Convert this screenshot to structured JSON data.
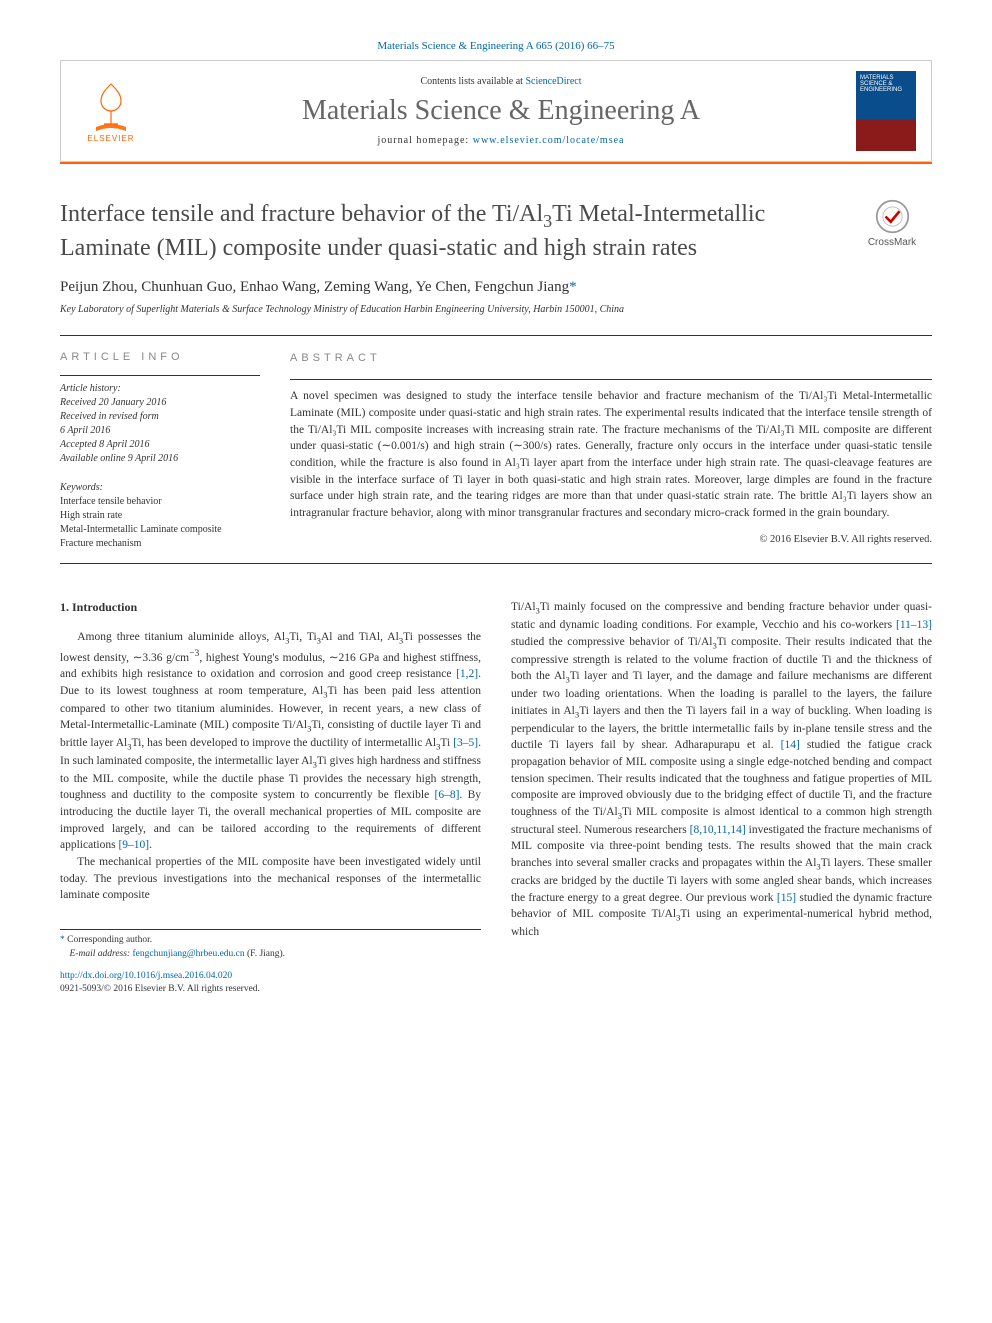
{
  "citation": "Materials Science & Engineering A 665 (2016) 66–75",
  "header": {
    "contents_prefix": "Contents lists available at ",
    "contents_link": "ScienceDirect",
    "journal_name": "Materials Science & Engineering A",
    "homepage_prefix": "journal homepage: ",
    "homepage_link": "www.elsevier.com/locate/msea",
    "publisher_logo_text": "ELSEVIER",
    "cover_title": "MATERIALS SCIENCE & ENGINEERING"
  },
  "article": {
    "title_html": "Interface tensile and fracture behavior of the Ti/Al<sub class='sub3'>3</sub>Ti Metal-Intermetallic Laminate (MIL) composite under quasi-static and high strain rates",
    "crossmark_label": "CrossMark",
    "authors": "Peijun Zhou, Chunhuan Guo, Enhao Wang, Zeming Wang, Ye Chen, Fengchun Jiang",
    "corr_symbol": "*",
    "affiliation": "Key Laboratory of Superlight Materials & Surface Technology Ministry of Education Harbin Engineering University, Harbin 150001, China"
  },
  "info": {
    "heading": "ARTICLE INFO",
    "history_label": "Article history:",
    "history": [
      "Received 20 January 2016",
      "Received in revised form",
      "6 April 2016",
      "Accepted 8 April 2016",
      "Available online 9 April 2016"
    ],
    "keywords_label": "Keywords:",
    "keywords": [
      "Interface tensile behavior",
      "High strain rate",
      "Metal-Intermetallic Laminate composite",
      "Fracture mechanism"
    ]
  },
  "abstract": {
    "heading": "ABSTRACT",
    "text": "A novel specimen was designed to study the interface tensile behavior and fracture mechanism of the Ti/Al₃Ti Metal-Intermetallic Laminate (MIL) composite under quasi-static and high strain rates. The experimental results indicated that the interface tensile strength of the Ti/Al₃Ti MIL composite increases with increasing strain rate. The fracture mechanisms of the Ti/Al₃Ti MIL composite are different under quasi-static (∼0.001/s) and high strain (∼300/s) rates. Generally, fracture only occurs in the interface under quasi-static tensile condition, while the fracture is also found in Al₃Ti layer apart from the interface under high strain rate. The quasi-cleavage features are visible in the interface surface of Ti layer in both quasi-static and high strain rates. Moreover, large dimples are found in the fracture surface under high strain rate, and the tearing ridges are more than that under quasi-static strain rate. The brittle Al₃Ti layers show an intragranular fracture behavior, along with minor transgranular fractures and secondary micro-crack formed in the grain boundary.",
    "copyright": "© 2016 Elsevier B.V. All rights reserved."
  },
  "body": {
    "intro_heading": "1. Introduction",
    "col1_p1_html": "Among three titanium aluminide alloys, Al<sub class='sub3'>3</sub>Ti, Ti<sub class='sub3'>3</sub>Al and TiAl, Al<sub class='sub3'>3</sub>Ti possesses the lowest density, ∼3.36 g/cm<sup>−3</sup>, highest Young's modulus, ∼216 GPa and highest stiffness, and exhibits high resistance to oxidation and corrosion and good creep resistance <span class='ref-link'>[1,2]</span>. Due to its lowest toughness at room temperature, Al<sub class='sub3'>3</sub>Ti has been paid less attention compared to other two titanium aluminides. However, in recent years, a new class of Metal-Intermetallic-Laminate (MIL) composite Ti/Al<sub class='sub3'>3</sub>Ti, consisting of ductile layer Ti and brittle layer Al<sub class='sub3'>3</sub>Ti, has been developed to improve the ductility of intermetallic Al<sub class='sub3'>3</sub>Ti <span class='ref-link'>[3–5]</span>. In such laminated composite, the intermetallic layer Al<sub class='sub3'>3</sub>Ti gives high hardness and stiffness to the MIL composite, while the ductile phase Ti provides the necessary high strength, toughness and ductility to the composite system to concurrently be flexible <span class='ref-link'>[6–8]</span>. By introducing the ductile layer Ti, the overall mechanical properties of MIL composite are improved largely, and can be tailored according to the requirements of different applications <span class='ref-link'>[9–10]</span>.",
    "col1_p2_html": "The mechanical properties of the MIL composite have been investigated widely until today. The previous investigations into the mechanical responses of the intermetallic laminate composite",
    "col2_p1_html": "Ti/Al<sub class='sub3'>3</sub>Ti mainly focused on the compressive and bending fracture behavior under quasi-static and dynamic loading conditions. For example, Vecchio and his co-workers <span class='ref-link'>[11–13]</span> studied the compressive behavior of Ti/Al<sub class='sub3'>3</sub>Ti composite. Their results indicated that the compressive strength is related to the volume fraction of ductile Ti and the thickness of both the Al<sub class='sub3'>3</sub>Ti layer and Ti layer, and the damage and failure mechanisms are different under two loading orientations. When the loading is parallel to the layers, the failure initiates in Al<sub class='sub3'>3</sub>Ti layers and then the Ti layers fail in a way of buckling. When loading is perpendicular to the layers, the brittle intermetallic fails by in-plane tensile stress and the ductile Ti layers fail by shear. Adharapurapu et al. <span class='ref-link'>[14]</span> studied the fatigue crack propagation behavior of MIL composite using a single edge-notched bending and compact tension specimen. Their results indicated that the toughness and fatigue properties of MIL composite are improved obviously due to the bridging effect of ductile Ti, and the fracture toughness of the Ti/Al<sub class='sub3'>3</sub>Ti MIL composite is almost identical to a common high strength structural steel. Numerous researchers <span class='ref-link'>[8,10,11,14]</span> investigated the fracture mechanisms of MIL composite via three-point bending tests. The results showed that the main crack branches into several smaller cracks and propagates within the Al<sub class='sub3'>3</sub>Ti layers. These smaller cracks are bridged by the ductile Ti layers with some angled shear bands, which increases the fracture energy to a great degree. Our previous work <span class='ref-link'>[15]</span> studied the dynamic fracture behavior of MIL composite Ti/Al<sub class='sub3'>3</sub>Ti using an experimental-numerical hybrid method, which"
  },
  "footnote": {
    "corr_label": "Corresponding author.",
    "email_label": "E-mail address: ",
    "email": "fengchunjiang@hrbeu.edu.cn",
    "email_attrib": " (F. Jiang)."
  },
  "doi": {
    "link": "http://dx.doi.org/10.1016/j.msea.2016.04.020",
    "issn_line": "0921-5093/© 2016 Elsevier B.V. All rights reserved."
  },
  "colors": {
    "link": "#0066aa",
    "orange": "#ff6600",
    "text": "#333333",
    "heading_gray": "#888888"
  }
}
